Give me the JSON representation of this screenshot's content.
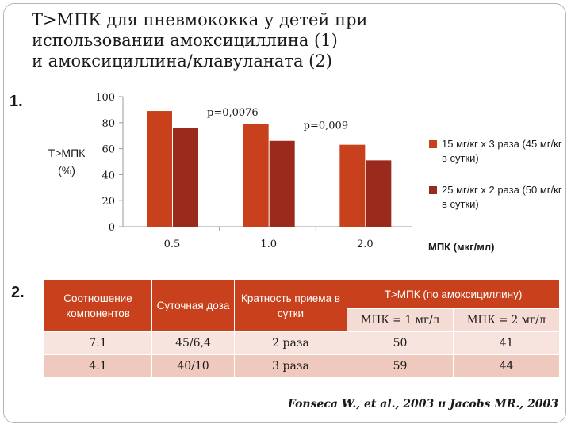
{
  "title_lines": [
    "Т>МПК для пневмококка у детей при",
    "использовании амоксициллина (1)",
    "и амоксициллина/клавуланата (2)"
  ],
  "section1_label": "1.",
  "section2_label": "2.",
  "chart_data": {
    "type": "bar",
    "categories": [
      "0.5",
      "1.0",
      "2.0"
    ],
    "series": [
      {
        "name": "15 мг/кг х 3 раза (45 мг/кг в сутки)",
        "values": [
          89,
          79,
          63
        ],
        "color": "#c8401c"
      },
      {
        "name": "25 мг/кг х 2 раза (50 мг/кг в сутки)",
        "values": [
          76,
          66,
          51
        ],
        "color": "#9a2a1c"
      }
    ],
    "ylabel_lines": [
      "Т>МПК",
      "(%)"
    ],
    "xlabel": "МПК (мкг/мл)",
    "ylim": [
      0,
      100
    ],
    "yticks": [
      0,
      20,
      40,
      60,
      80,
      100
    ],
    "legend_position": "right",
    "grid": false,
    "annotations": [
      {
        "text": "p=0,0076",
        "category_index": 0
      },
      {
        "text": "p=0,009",
        "category_index": 1
      }
    ]
  },
  "table": {
    "headers": [
      "Соотношение компонентов",
      "Суточная доза",
      "Кратность приема в сутки",
      "Т>МПК (по амоксициллину)"
    ],
    "subheaders": [
      "МПК = 1 мг/л",
      "МПК = 2 мг/л"
    ],
    "rows": [
      [
        "7:1",
        "45/6,4",
        "2 раза",
        "50",
        "41"
      ],
      [
        "4:1",
        "40/10",
        "3 раза",
        "59",
        "44"
      ]
    ]
  },
  "citation": "Fonseca W., et al., 2003 и Jacobs MR., 2003"
}
